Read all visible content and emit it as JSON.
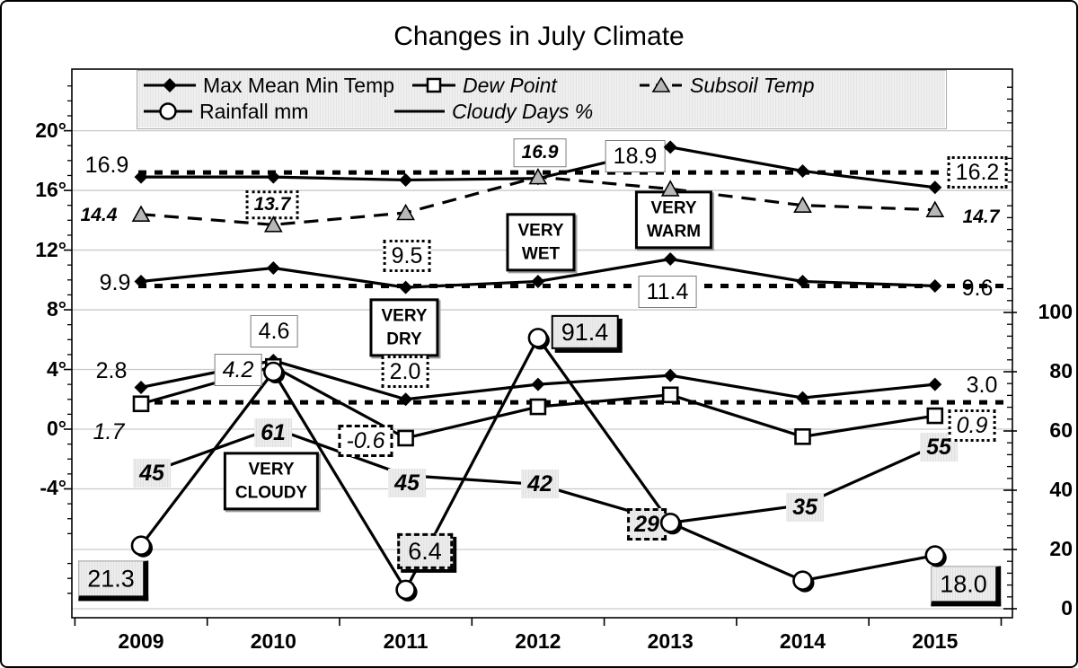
{
  "title": "Changes in July Climate",
  "legend": {
    "items": [
      {
        "label": "Max Mean Min Temp",
        "marker": "diamond",
        "italic": false
      },
      {
        "label": "Dew Point",
        "marker": "square",
        "italic": true
      },
      {
        "label": "Subsoil Temp",
        "marker": "triangle",
        "italic": true
      },
      {
        "label": "Rainfall mm",
        "marker": "circle",
        "italic": false
      },
      {
        "label": "Cloudy Days %",
        "marker": "line",
        "italic": true
      }
    ]
  },
  "colors": {
    "line": "#000000",
    "grid": "#c9c9c9",
    "subsoil_fill": "#b8b8b8",
    "shaded_bg": "#e8e8e8"
  },
  "chart_data": {
    "type": "line",
    "title": "Changes in July Climate",
    "categories": [
      "2009",
      "2010",
      "2011",
      "2012",
      "2013",
      "2014",
      "2015"
    ],
    "left_axis": {
      "unit": "degrees C",
      "ticks": [
        {
          "label": "20°",
          "value": 20
        },
        {
          "label": "16°",
          "value": 16
        },
        {
          "label": "12°",
          "value": 12
        },
        {
          "label": "8°",
          "value": 8
        },
        {
          "label": "4°",
          "value": 4
        },
        {
          "label": "0°",
          "value": 0
        },
        {
          "label": "-4°",
          "value": -4
        }
      ]
    },
    "right_axis": {
      "unit": "mm / percent",
      "ticks": [
        {
          "label": "100",
          "value": 100
        },
        {
          "label": "80",
          "value": 80
        },
        {
          "label": "60",
          "value": 60
        },
        {
          "label": "40",
          "value": 40
        },
        {
          "label": "20",
          "value": 20
        },
        {
          "label": "0",
          "value": 0
        }
      ]
    },
    "series": [
      {
        "name": "Max Temp",
        "axis": "temp",
        "marker": "diamond",
        "dash": null,
        "values": [
          16.9,
          16.9,
          16.7,
          16.8,
          18.9,
          17.3,
          16.2
        ]
      },
      {
        "name": "Subsoil Temp",
        "axis": "temp",
        "marker": "triangle",
        "dash": "16 10",
        "values": [
          14.4,
          13.7,
          14.5,
          16.9,
          16.1,
          15.0,
          14.7
        ]
      },
      {
        "name": "Mean Temp",
        "axis": "temp",
        "marker": "diamond",
        "dash": null,
        "values": [
          9.9,
          10.8,
          9.5,
          9.9,
          11.4,
          9.9,
          9.6
        ]
      },
      {
        "name": "Min Temp",
        "axis": "temp",
        "marker": "diamond",
        "dash": null,
        "values": [
          2.8,
          4.6,
          2.0,
          3.0,
          3.6,
          2.1,
          3.0
        ]
      },
      {
        "name": "Dew Point",
        "axis": "temp",
        "marker": "square",
        "dash": null,
        "values": [
          1.7,
          4.2,
          -0.6,
          1.5,
          2.3,
          -0.5,
          0.9
        ]
      },
      {
        "name": "Rainfall mm",
        "axis": "right",
        "marker": "circle",
        "dash": null,
        "values": [
          21.3,
          80,
          6.4,
          91.4,
          29,
          9.5,
          18.0
        ]
      },
      {
        "name": "Cloudy Days %",
        "axis": "right",
        "marker": null,
        "dash": null,
        "values": [
          45,
          61,
          45,
          42,
          29,
          35,
          55
        ]
      }
    ],
    "reference_lines": [
      {
        "axis": "temp",
        "value": 17.2,
        "style": "dotted"
      },
      {
        "axis": "temp",
        "value": 9.6,
        "style": "dotted"
      },
      {
        "axis": "temp",
        "value": 1.8,
        "style": "dotted"
      }
    ],
    "annotations": [
      {
        "t": "16.9",
        "x": 117,
        "y": 182,
        "c": "plain"
      },
      {
        "t": "14.4",
        "x": 108,
        "y": 238,
        "c": "bi"
      },
      {
        "t": "9.9",
        "x": 126,
        "y": 313,
        "c": "plain"
      },
      {
        "t": "2.8",
        "x": 122,
        "y": 411,
        "c": "plain"
      },
      {
        "t": "1.7",
        "x": 119,
        "y": 479,
        "c": "it"
      },
      {
        "t": "45",
        "x": 167,
        "y": 525,
        "c": "shade"
      },
      {
        "t": "21.3",
        "x": 124,
        "y": 645,
        "c": "bigbox"
      },
      {
        "t": "13.7",
        "x": 301,
        "y": 226,
        "c": "dotbox bi"
      },
      {
        "t": "4.6",
        "x": 303,
        "y": 367,
        "c": "wbox"
      },
      {
        "t": "4.2",
        "x": 263,
        "y": 410,
        "c": "wbox it"
      },
      {
        "t": "61",
        "x": 302,
        "y": 480,
        "c": "shade"
      },
      {
        "t": "VERY\nCLOUDY",
        "x": 300,
        "y": 534,
        "c": "vbox"
      },
      {
        "t": "9.5",
        "x": 451,
        "y": 283,
        "c": "dotbox"
      },
      {
        "t": "VERY\nDRY",
        "x": 448,
        "y": 363,
        "c": "vbox"
      },
      {
        "t": "2.0",
        "x": 449,
        "y": 412,
        "c": "dotbox"
      },
      {
        "t": "-0.6",
        "x": 405,
        "y": 489,
        "c": "dashbox it"
      },
      {
        "t": "45",
        "x": 451,
        "y": 536,
        "c": "shade"
      },
      {
        "t": "6.4",
        "x": 471,
        "y": 612,
        "c": "shadowbox dashed"
      },
      {
        "t": "16.9",
        "x": 599,
        "y": 168,
        "c": "wbox bi"
      },
      {
        "t": "VERY\nWET",
        "x": 600,
        "y": 268,
        "c": "vbox"
      },
      {
        "t": "91.4",
        "x": 649,
        "y": 368,
        "c": "shadowbox"
      },
      {
        "t": "42",
        "x": 599,
        "y": 537,
        "c": "shade"
      },
      {
        "t": "18.9",
        "x": 705,
        "y": 172,
        "c": "wbox"
      },
      {
        "t": "VERY\nWARM",
        "x": 748,
        "y": 243,
        "c": "vbox"
      },
      {
        "t": "11.4",
        "x": 741,
        "y": 323,
        "c": "wbox"
      },
      {
        "t": "29",
        "x": 718,
        "y": 582,
        "c": "shade dashb"
      },
      {
        "t": "35",
        "x": 894,
        "y": 563,
        "c": "shade"
      },
      {
        "t": "55",
        "x": 1043,
        "y": 496,
        "c": "shade"
      },
      {
        "t": "16.2",
        "x": 1086,
        "y": 190,
        "c": "dotbox"
      },
      {
        "t": "14.7",
        "x": 1090,
        "y": 240,
        "c": "bi"
      },
      {
        "t": "9.6",
        "x": 1086,
        "y": 319,
        "c": "plain"
      },
      {
        "t": "3.0",
        "x": 1091,
        "y": 427,
        "c": "plain"
      },
      {
        "t": "0.9",
        "x": 1080,
        "y": 472,
        "c": "dotbox it"
      },
      {
        "t": "18.0",
        "x": 1073,
        "y": 651,
        "c": "bigbox"
      }
    ]
  }
}
